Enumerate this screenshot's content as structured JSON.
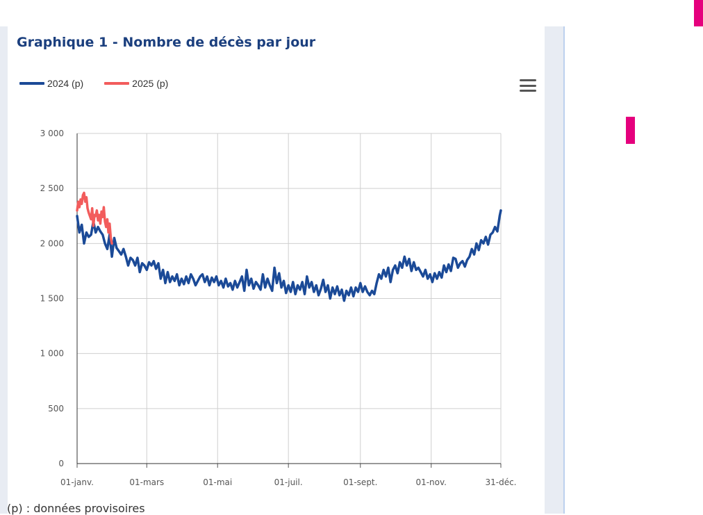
{
  "page": {
    "title": "Graphique 1 - Nombre de décès par jour",
    "footnote": "(p) : données provisoires",
    "menu_icon": "hamburger-menu-icon",
    "colors": {
      "title": "#1b3f7e",
      "accent_pink": "#e5007d",
      "strip": "#e8ecf3"
    }
  },
  "chart_data": {
    "type": "line",
    "title": "Graphique 1 - Nombre de décès par jour",
    "xlabel": "",
    "ylabel": "",
    "x_domain_days": [
      0,
      365
    ],
    "ylim": [
      0,
      3000
    ],
    "yticks": [
      0,
      500,
      1000,
      1500,
      2000,
      2500,
      3000
    ],
    "ytick_labels": [
      "0",
      "500",
      "1 000",
      "1 500",
      "2 000",
      "2 500",
      "3 000"
    ],
    "xticks": [
      {
        "day": 0,
        "label": "01-janv."
      },
      {
        "day": 60,
        "label": "01-mars"
      },
      {
        "day": 121,
        "label": "01-mai"
      },
      {
        "day": 182,
        "label": "01-juil."
      },
      {
        "day": 244,
        "label": "01-sept."
      },
      {
        "day": 305,
        "label": "01-nov."
      },
      {
        "day": 365,
        "label": "31-déc."
      }
    ],
    "grid": true,
    "legend_position": "top-left",
    "series": [
      {
        "name": "2024 (p)",
        "color": "#1b4a97",
        "points": [
          [
            0,
            2250
          ],
          [
            2,
            2100
          ],
          [
            4,
            2170
          ],
          [
            6,
            2000
          ],
          [
            8,
            2100
          ],
          [
            10,
            2060
          ],
          [
            12,
            2080
          ],
          [
            14,
            2200
          ],
          [
            16,
            2100
          ],
          [
            18,
            2150
          ],
          [
            20,
            2110
          ],
          [
            22,
            2080
          ],
          [
            24,
            2000
          ],
          [
            26,
            1950
          ],
          [
            28,
            2080
          ],
          [
            30,
            1880
          ],
          [
            32,
            2050
          ],
          [
            34,
            1960
          ],
          [
            36,
            1930
          ],
          [
            38,
            1900
          ],
          [
            40,
            1950
          ],
          [
            42,
            1880
          ],
          [
            44,
            1800
          ],
          [
            46,
            1870
          ],
          [
            48,
            1850
          ],
          [
            50,
            1800
          ],
          [
            52,
            1870
          ],
          [
            54,
            1740
          ],
          [
            56,
            1820
          ],
          [
            58,
            1800
          ],
          [
            60,
            1760
          ],
          [
            62,
            1830
          ],
          [
            64,
            1800
          ],
          [
            66,
            1840
          ],
          [
            68,
            1770
          ],
          [
            70,
            1820
          ],
          [
            72,
            1680
          ],
          [
            74,
            1760
          ],
          [
            76,
            1640
          ],
          [
            78,
            1740
          ],
          [
            80,
            1650
          ],
          [
            82,
            1700
          ],
          [
            84,
            1660
          ],
          [
            86,
            1720
          ],
          [
            88,
            1620
          ],
          [
            90,
            1680
          ],
          [
            92,
            1630
          ],
          [
            94,
            1700
          ],
          [
            96,
            1640
          ],
          [
            98,
            1720
          ],
          [
            100,
            1680
          ],
          [
            102,
            1620
          ],
          [
            104,
            1660
          ],
          [
            106,
            1700
          ],
          [
            108,
            1720
          ],
          [
            110,
            1650
          ],
          [
            112,
            1700
          ],
          [
            114,
            1620
          ],
          [
            116,
            1690
          ],
          [
            118,
            1650
          ],
          [
            120,
            1700
          ],
          [
            122,
            1620
          ],
          [
            124,
            1660
          ],
          [
            126,
            1600
          ],
          [
            128,
            1680
          ],
          [
            130,
            1610
          ],
          [
            132,
            1640
          ],
          [
            134,
            1580
          ],
          [
            136,
            1660
          ],
          [
            138,
            1600
          ],
          [
            140,
            1650
          ],
          [
            142,
            1700
          ],
          [
            144,
            1570
          ],
          [
            146,
            1760
          ],
          [
            148,
            1620
          ],
          [
            150,
            1680
          ],
          [
            152,
            1590
          ],
          [
            154,
            1650
          ],
          [
            156,
            1620
          ],
          [
            158,
            1580
          ],
          [
            160,
            1720
          ],
          [
            162,
            1600
          ],
          [
            164,
            1680
          ],
          [
            166,
            1620
          ],
          [
            168,
            1570
          ],
          [
            170,
            1780
          ],
          [
            172,
            1640
          ],
          [
            174,
            1730
          ],
          [
            176,
            1600
          ],
          [
            178,
            1660
          ],
          [
            180,
            1550
          ],
          [
            182,
            1620
          ],
          [
            184,
            1560
          ],
          [
            186,
            1650
          ],
          [
            188,
            1540
          ],
          [
            190,
            1620
          ],
          [
            192,
            1580
          ],
          [
            194,
            1650
          ],
          [
            196,
            1540
          ],
          [
            198,
            1700
          ],
          [
            200,
            1600
          ],
          [
            202,
            1650
          ],
          [
            204,
            1560
          ],
          [
            206,
            1620
          ],
          [
            208,
            1530
          ],
          [
            210,
            1590
          ],
          [
            212,
            1670
          ],
          [
            214,
            1560
          ],
          [
            216,
            1620
          ],
          [
            218,
            1500
          ],
          [
            220,
            1600
          ],
          [
            222,
            1540
          ],
          [
            224,
            1610
          ],
          [
            226,
            1530
          ],
          [
            228,
            1580
          ],
          [
            230,
            1480
          ],
          [
            232,
            1570
          ],
          [
            234,
            1530
          ],
          [
            236,
            1600
          ],
          [
            238,
            1520
          ],
          [
            240,
            1600
          ],
          [
            242,
            1560
          ],
          [
            244,
            1640
          ],
          [
            246,
            1560
          ],
          [
            248,
            1610
          ],
          [
            250,
            1560
          ],
          [
            252,
            1530
          ],
          [
            254,
            1570
          ],
          [
            256,
            1540
          ],
          [
            258,
            1640
          ],
          [
            260,
            1720
          ],
          [
            262,
            1680
          ],
          [
            264,
            1760
          ],
          [
            266,
            1700
          ],
          [
            268,
            1780
          ],
          [
            270,
            1650
          ],
          [
            272,
            1760
          ],
          [
            274,
            1800
          ],
          [
            276,
            1730
          ],
          [
            278,
            1830
          ],
          [
            280,
            1780
          ],
          [
            282,
            1880
          ],
          [
            284,
            1800
          ],
          [
            286,
            1860
          ],
          [
            288,
            1750
          ],
          [
            290,
            1830
          ],
          [
            292,
            1760
          ],
          [
            294,
            1780
          ],
          [
            296,
            1740
          ],
          [
            298,
            1700
          ],
          [
            300,
            1760
          ],
          [
            302,
            1680
          ],
          [
            304,
            1720
          ],
          [
            306,
            1650
          ],
          [
            308,
            1730
          ],
          [
            310,
            1680
          ],
          [
            312,
            1740
          ],
          [
            314,
            1690
          ],
          [
            316,
            1800
          ],
          [
            318,
            1740
          ],
          [
            320,
            1810
          ],
          [
            322,
            1750
          ],
          [
            324,
            1870
          ],
          [
            326,
            1860
          ],
          [
            328,
            1780
          ],
          [
            330,
            1820
          ],
          [
            332,
            1840
          ],
          [
            334,
            1790
          ],
          [
            336,
            1850
          ],
          [
            338,
            1880
          ],
          [
            340,
            1950
          ],
          [
            342,
            1900
          ],
          [
            344,
            2000
          ],
          [
            346,
            1940
          ],
          [
            348,
            2030
          ],
          [
            350,
            2000
          ],
          [
            352,
            2060
          ],
          [
            354,
            1990
          ],
          [
            356,
            2080
          ],
          [
            358,
            2100
          ],
          [
            360,
            2150
          ],
          [
            362,
            2110
          ],
          [
            364,
            2250
          ],
          [
            365,
            2300
          ]
        ]
      },
      {
        "name": "2025 (p)",
        "color": "#f25c5c",
        "points": [
          [
            0,
            2300
          ],
          [
            1,
            2380
          ],
          [
            2,
            2330
          ],
          [
            3,
            2400
          ],
          [
            4,
            2360
          ],
          [
            5,
            2440
          ],
          [
            6,
            2460
          ],
          [
            7,
            2380
          ],
          [
            8,
            2420
          ],
          [
            9,
            2320
          ],
          [
            10,
            2280
          ],
          [
            11,
            2250
          ],
          [
            12,
            2220
          ],
          [
            13,
            2320
          ],
          [
            14,
            2160
          ],
          [
            15,
            2260
          ],
          [
            16,
            2250
          ],
          [
            17,
            2300
          ],
          [
            18,
            2210
          ],
          [
            19,
            2260
          ],
          [
            20,
            2180
          ],
          [
            21,
            2290
          ],
          [
            22,
            2240
          ],
          [
            23,
            2330
          ],
          [
            24,
            2200
          ],
          [
            25,
            2150
          ],
          [
            26,
            2220
          ],
          [
            27,
            2100
          ],
          [
            28,
            2180
          ],
          [
            29,
            2050
          ],
          [
            30,
            2000
          ]
        ]
      }
    ]
  }
}
